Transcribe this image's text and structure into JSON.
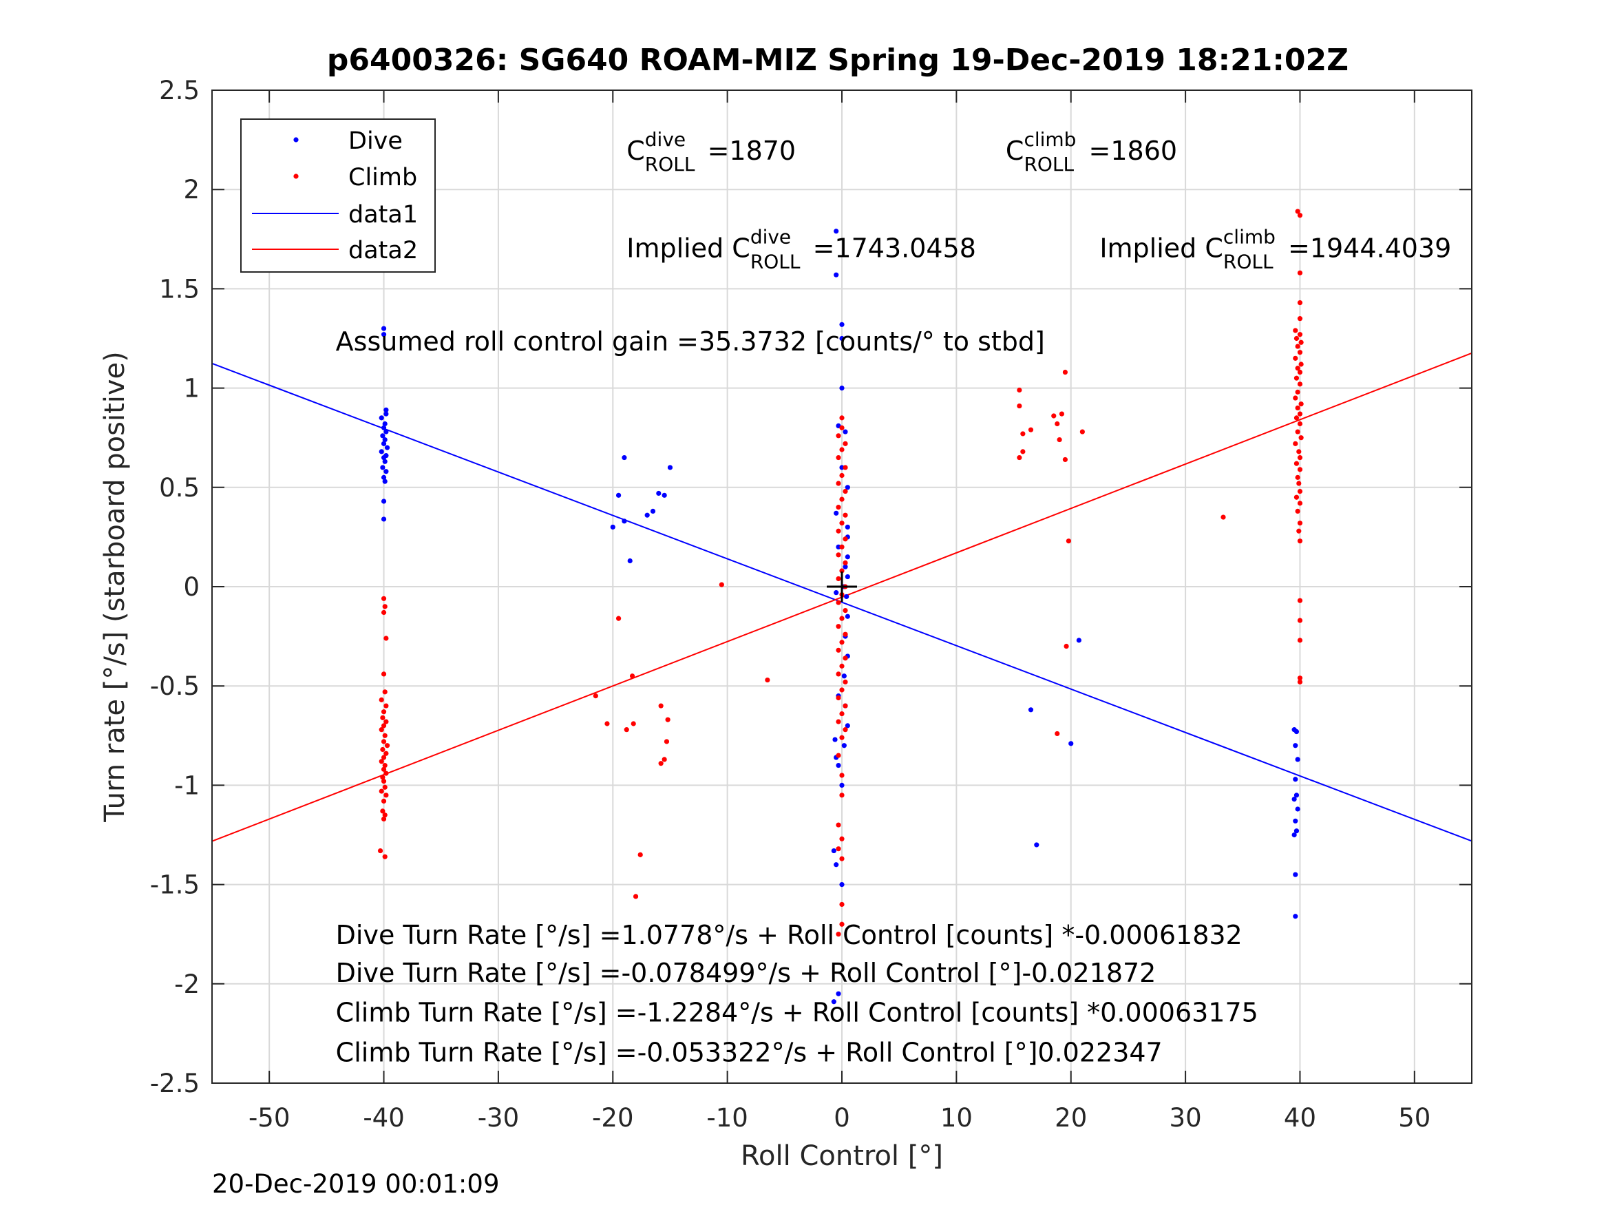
{
  "chart_data": {
    "type": "scatter",
    "title": "p6400326: SG640 ROAM-MIZ Spring 19-Dec-2019 18:21:02Z",
    "xlabel": "Roll Control [°]",
    "ylabel": "Turn rate [°/s] (starboard positive)",
    "xlim": [
      -55,
      55
    ],
    "ylim": [
      -2.5,
      2.5
    ],
    "x_ticks": [
      -50,
      -40,
      -30,
      -20,
      -10,
      0,
      10,
      20,
      30,
      40,
      50
    ],
    "y_ticks": [
      -2.5,
      -2,
      -1.5,
      -1,
      -0.5,
      0,
      0.5,
      1,
      1.5,
      2,
      2.5
    ],
    "x_tick_labels": [
      "-50",
      "-40",
      "-30",
      "-20",
      "-10",
      "0",
      "10",
      "20",
      "30",
      "40",
      "50"
    ],
    "y_tick_labels": [
      "-2.5",
      "-2",
      "-1.5",
      "-1",
      "-0.5",
      "0",
      "0.5",
      "1",
      "1.5",
      "2",
      "2.5"
    ],
    "grid": true,
    "legend_position": "top-left",
    "series": [
      {
        "name": "Dive",
        "kind": "points",
        "color": "#0000ff",
        "points": [
          [
            -40,
            1.3
          ],
          [
            -40,
            1.27
          ],
          [
            -39.8,
            0.89
          ],
          [
            -39.8,
            0.87
          ],
          [
            -40.2,
            0.85
          ],
          [
            -39.9,
            0.82
          ],
          [
            -40,
            0.8
          ],
          [
            -39.8,
            0.78
          ],
          [
            -40.1,
            0.76
          ],
          [
            -39.9,
            0.74
          ],
          [
            -40,
            0.72
          ],
          [
            -39.7,
            0.7
          ],
          [
            -40.2,
            0.68
          ],
          [
            -39.8,
            0.66
          ],
          [
            -40,
            0.65
          ],
          [
            -39.9,
            0.63
          ],
          [
            -40.1,
            0.6
          ],
          [
            -39.8,
            0.58
          ],
          [
            -40,
            0.55
          ],
          [
            -39.9,
            0.53
          ],
          [
            -40,
            0.43
          ],
          [
            -40,
            0.34
          ],
          [
            -19,
            0.65
          ],
          [
            -19.5,
            0.46
          ],
          [
            -16,
            0.47
          ],
          [
            -15.5,
            0.46
          ],
          [
            -15,
            0.6
          ],
          [
            -16.5,
            0.38
          ],
          [
            -17,
            0.36
          ],
          [
            -19,
            0.33
          ],
          [
            -20,
            0.3
          ],
          [
            -18.5,
            0.13
          ],
          [
            -0.5,
            1.79
          ],
          [
            -0.5,
            1.57
          ],
          [
            0,
            1.32
          ],
          [
            0,
            1.25
          ],
          [
            0,
            1.0
          ],
          [
            -0.3,
            0.81
          ],
          [
            0.3,
            0.78
          ],
          [
            0,
            0.6
          ],
          [
            0.5,
            0.5
          ],
          [
            -0.5,
            0.37
          ],
          [
            0.5,
            0.3
          ],
          [
            0.5,
            0.25
          ],
          [
            -0.3,
            0.2
          ],
          [
            0.5,
            0.15
          ],
          [
            0.3,
            0.1
          ],
          [
            0.5,
            0.05
          ],
          [
            0.2,
            0.0
          ],
          [
            0.4,
            -0.05
          ],
          [
            -0.5,
            -0.03
          ],
          [
            0.5,
            -0.15
          ],
          [
            0.3,
            -0.25
          ],
          [
            0.5,
            -0.35
          ],
          [
            0.2,
            -0.45
          ],
          [
            -0.3,
            -0.55
          ],
          [
            0.3,
            -0.6
          ],
          [
            0.5,
            -0.7
          ],
          [
            -0.6,
            -0.77
          ],
          [
            0.2,
            -0.8
          ],
          [
            -0.5,
            -0.86
          ],
          [
            -0.3,
            -0.9
          ],
          [
            0,
            -1.0
          ],
          [
            -0.7,
            -1.33
          ],
          [
            0,
            -1.5
          ],
          [
            -0.5,
            -1.4
          ],
          [
            -0.3,
            -2.05
          ],
          [
            -0.7,
            -2.09
          ],
          [
            16.5,
            -0.62
          ],
          [
            17,
            -1.3
          ],
          [
            20,
            -0.79
          ],
          [
            20.7,
            -0.27
          ],
          [
            39.5,
            -0.72
          ],
          [
            39.7,
            -0.73
          ],
          [
            39.6,
            -0.8
          ],
          [
            39.8,
            -0.87
          ],
          [
            39.6,
            -0.97
          ],
          [
            39.7,
            -1.05
          ],
          [
            39.5,
            -1.07
          ],
          [
            39.8,
            -1.12
          ],
          [
            39.6,
            -1.18
          ],
          [
            39.5,
            -1.25
          ],
          [
            39.7,
            -1.23
          ],
          [
            39.6,
            -1.45
          ],
          [
            39.6,
            -1.66
          ]
        ]
      },
      {
        "name": "Climb",
        "kind": "points",
        "color": "#ff0000",
        "points": [
          [
            -40,
            -0.06
          ],
          [
            -39.9,
            -0.1
          ],
          [
            -40,
            -0.13
          ],
          [
            -39.8,
            -0.26
          ],
          [
            -40,
            -0.44
          ],
          [
            -39.9,
            -0.53
          ],
          [
            -40.2,
            -0.57
          ],
          [
            -39.8,
            -0.6
          ],
          [
            -40,
            -0.63
          ],
          [
            -40.1,
            -0.66
          ],
          [
            -39.8,
            -0.68
          ],
          [
            -40,
            -0.7
          ],
          [
            -40.2,
            -0.72
          ],
          [
            -39.9,
            -0.75
          ],
          [
            -40,
            -0.78
          ],
          [
            -39.7,
            -0.8
          ],
          [
            -40.1,
            -0.82
          ],
          [
            -39.8,
            -0.84
          ],
          [
            -40,
            -0.86
          ],
          [
            -40.2,
            -0.88
          ],
          [
            -39.9,
            -0.9
          ],
          [
            -40,
            -0.92
          ],
          [
            -39.8,
            -0.94
          ],
          [
            -40.1,
            -0.96
          ],
          [
            -40,
            -0.98
          ],
          [
            -39.9,
            -1.01
          ],
          [
            -40.2,
            -1.03
          ],
          [
            -39.8,
            -1.05
          ],
          [
            -40,
            -1.08
          ],
          [
            -40.1,
            -1.13
          ],
          [
            -39.9,
            -1.15
          ],
          [
            -40,
            -1.17
          ],
          [
            -40.3,
            -1.33
          ],
          [
            -39.9,
            -1.36
          ],
          [
            -10.5,
            0.01
          ],
          [
            -19.5,
            -0.16
          ],
          [
            -21.5,
            -0.55
          ],
          [
            -18.3,
            -0.45
          ],
          [
            -20.5,
            -0.69
          ],
          [
            -18.8,
            -0.72
          ],
          [
            -18.2,
            -0.69
          ],
          [
            -15.8,
            -0.6
          ],
          [
            -15.2,
            -0.67
          ],
          [
            -15.3,
            -0.78
          ],
          [
            -15.5,
            -0.87
          ],
          [
            -15.8,
            -0.89
          ],
          [
            -17.6,
            -1.35
          ],
          [
            -18,
            -1.56
          ],
          [
            -6.5,
            -0.47
          ],
          [
            0,
            0.85
          ],
          [
            0,
            0.8
          ],
          [
            -0.3,
            0.76
          ],
          [
            0.3,
            0.72
          ],
          [
            0,
            0.69
          ],
          [
            -0.3,
            0.65
          ],
          [
            0.3,
            0.6
          ],
          [
            0,
            0.56
          ],
          [
            -0.3,
            0.52
          ],
          [
            0.3,
            0.48
          ],
          [
            0,
            0.44
          ],
          [
            -0.3,
            0.4
          ],
          [
            0.3,
            0.36
          ],
          [
            0,
            0.32
          ],
          [
            -0.3,
            0.28
          ],
          [
            0.3,
            0.24
          ],
          [
            0,
            0.2
          ],
          [
            -0.3,
            0.16
          ],
          [
            0.3,
            0.12
          ],
          [
            0,
            0.08
          ],
          [
            -0.3,
            0.04
          ],
          [
            0.3,
            0.0
          ],
          [
            0,
            -0.04
          ],
          [
            -0.3,
            -0.08
          ],
          [
            0.3,
            -0.12
          ],
          [
            0,
            -0.16
          ],
          [
            -0.3,
            -0.2
          ],
          [
            0.3,
            -0.24
          ],
          [
            0,
            -0.28
          ],
          [
            -0.3,
            -0.32
          ],
          [
            0.3,
            -0.36
          ],
          [
            0,
            -0.4
          ],
          [
            -0.3,
            -0.44
          ],
          [
            0.3,
            -0.48
          ],
          [
            0,
            -0.52
          ],
          [
            -0.3,
            -0.56
          ],
          [
            0.3,
            -0.6
          ],
          [
            0,
            -0.64
          ],
          [
            -0.3,
            -0.68
          ],
          [
            0.3,
            -0.72
          ],
          [
            0,
            -0.76
          ],
          [
            -0.3,
            -0.85
          ],
          [
            0,
            -0.95
          ],
          [
            0,
            -1.05
          ],
          [
            -0.3,
            -1.2
          ],
          [
            0,
            -1.27
          ],
          [
            -0.3,
            -1.32
          ],
          [
            0,
            -1.37
          ],
          [
            0,
            -1.6
          ],
          [
            0,
            -1.7
          ],
          [
            -0.3,
            -1.75
          ],
          [
            15.5,
            0.99
          ],
          [
            15.5,
            0.91
          ],
          [
            19.5,
            1.08
          ],
          [
            16.5,
            0.79
          ],
          [
            15.8,
            0.77
          ],
          [
            18.5,
            0.86
          ],
          [
            19.2,
            0.87
          ],
          [
            18.8,
            0.82
          ],
          [
            21,
            0.78
          ],
          [
            19,
            0.74
          ],
          [
            15.5,
            0.65
          ],
          [
            15.8,
            0.68
          ],
          [
            19.5,
            0.64
          ],
          [
            19.8,
            0.23
          ],
          [
            19.6,
            -0.3
          ],
          [
            18.8,
            -0.74
          ],
          [
            33.3,
            0.35
          ],
          [
            39.8,
            1.89
          ],
          [
            40,
            1.87
          ],
          [
            40,
            1.58
          ],
          [
            40,
            1.43
          ],
          [
            40,
            1.35
          ],
          [
            39.6,
            1.29
          ],
          [
            40,
            1.27
          ],
          [
            39.7,
            1.25
          ],
          [
            40.1,
            1.23
          ],
          [
            39.8,
            1.21
          ],
          [
            40,
            1.18
          ],
          [
            39.6,
            1.15
          ],
          [
            40.1,
            1.12
          ],
          [
            39.8,
            1.1
          ],
          [
            40,
            1.08
          ],
          [
            39.7,
            1.05
          ],
          [
            40,
            1.02
          ],
          [
            39.8,
            0.98
          ],
          [
            39.6,
            0.95
          ],
          [
            40.1,
            0.92
          ],
          [
            39.8,
            0.9
          ],
          [
            40,
            0.87
          ],
          [
            39.7,
            0.85
          ],
          [
            40,
            0.82
          ],
          [
            39.8,
            0.78
          ],
          [
            40.1,
            0.75
          ],
          [
            39.6,
            0.72
          ],
          [
            39.9,
            0.68
          ],
          [
            40,
            0.65
          ],
          [
            39.7,
            0.62
          ],
          [
            40,
            0.59
          ],
          [
            39.8,
            0.55
          ],
          [
            39.9,
            0.52
          ],
          [
            40,
            0.48
          ],
          [
            39.7,
            0.45
          ],
          [
            40,
            0.42
          ],
          [
            39.8,
            0.38
          ],
          [
            40,
            0.32
          ],
          [
            39.9,
            0.28
          ],
          [
            40,
            0.23
          ],
          [
            40,
            -0.07
          ],
          [
            40,
            -0.17
          ],
          [
            40,
            -0.27
          ],
          [
            40,
            -0.46
          ],
          [
            40,
            -0.48
          ]
        ]
      },
      {
        "name": "data1",
        "kind": "line",
        "color": "#0000ff",
        "x": [
          -55,
          55
        ],
        "y": [
          1.124,
          -1.281
        ]
      },
      {
        "name": "data2",
        "kind": "line",
        "color": "#ff0000",
        "x": [
          -55,
          55
        ],
        "y": [
          -1.282,
          1.176
        ]
      }
    ],
    "center_marker": {
      "x": 0,
      "y": 0,
      "symbol": "+"
    },
    "annotations": [
      {
        "id": "c-dive",
        "base": "C",
        "sup": "dive",
        "sub": "ROLL",
        "suffix": "=1870",
        "x": -18.8,
        "y": 2.15
      },
      {
        "id": "c-climb",
        "base": "C",
        "sup": "climb",
        "sub": "ROLL",
        "suffix": "=1860",
        "x": 14.3,
        "y": 2.15
      },
      {
        "id": "implied-dive",
        "base": "Implied C",
        "sup": "dive",
        "sub": "ROLL",
        "suffix": "=1743.0458",
        "x": -18.8,
        "y": 1.66
      },
      {
        "id": "implied-climb",
        "base": "Implied C",
        "sup": "climb",
        "sub": "ROLL",
        "suffix": "=1944.4039",
        "x": 22.5,
        "y": 1.66
      },
      {
        "id": "gain",
        "text": "Assumed roll control gain =35.3732 [counts/° to stbd]",
        "x": -44.2,
        "y": 1.19
      },
      {
        "id": "eq1",
        "text": "Dive Turn Rate [°/s] =1.0778°/s + Roll Control [counts] *-0.00061832",
        "x": -44.2,
        "y": -1.8
      },
      {
        "id": "eq2",
        "text": "Dive Turn Rate [°/s] =-0.078499°/s + Roll Control [°]-0.021872",
        "x": -44.2,
        "y": -1.99
      },
      {
        "id": "eq3",
        "text": "Climb Turn Rate [°/s] =-1.2284°/s + Roll Control [counts] *0.00063175",
        "x": -44.2,
        "y": -2.19
      },
      {
        "id": "eq4",
        "text": "Climb Turn Rate [°/s] =-0.053322°/s + Roll Control [°]0.022347",
        "x": -44.2,
        "y": -2.39
      }
    ]
  },
  "timestamp": "20-Dec-2019 00:01:09"
}
